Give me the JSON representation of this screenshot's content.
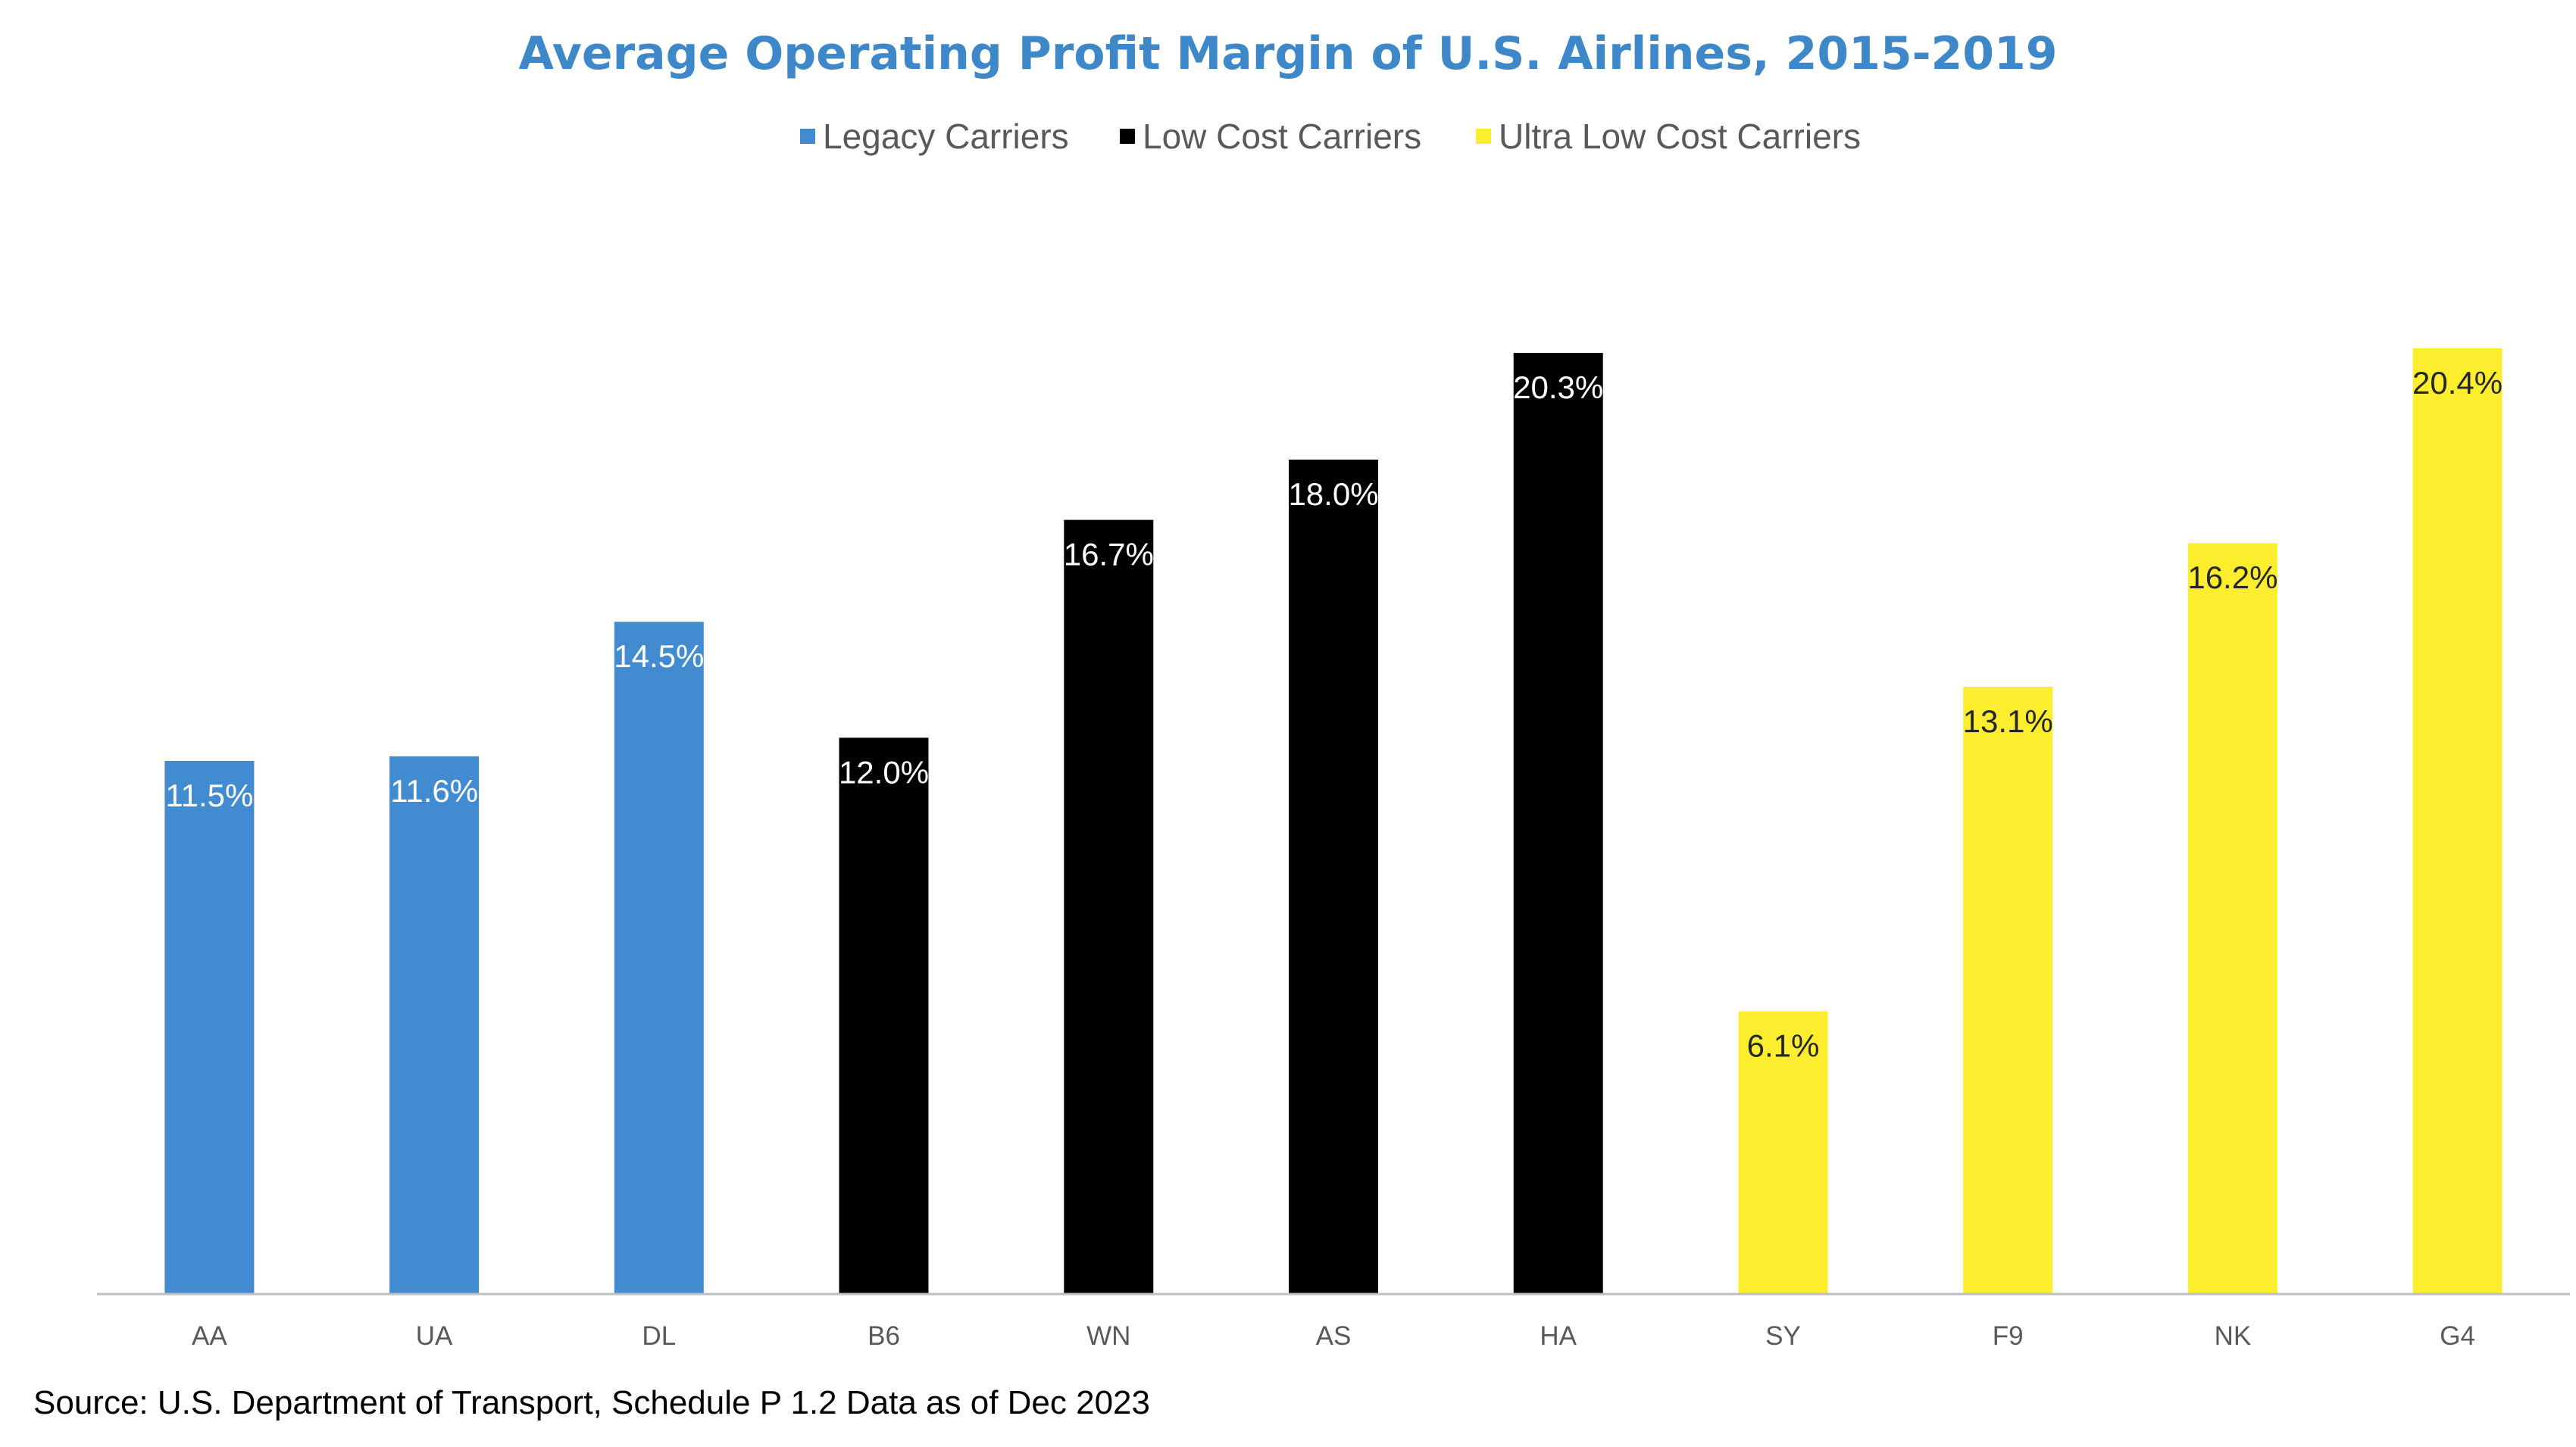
{
  "chart_data": {
    "type": "bar",
    "title": "Average Operating Profit Margin of U.S. Airlines, 2015-2019",
    "xlabel": "",
    "ylabel": "",
    "ylim": [
      0,
      24.5
    ],
    "grid": false,
    "legend_placement": "top-center",
    "categories": [
      "AA",
      "UA",
      "DL",
      "B6",
      "WN",
      "AS",
      "HA",
      "SY",
      "F9",
      "NK",
      "G4"
    ],
    "values": [
      11.5,
      11.6,
      14.5,
      12.0,
      16.7,
      18.0,
      20.3,
      6.1,
      13.1,
      16.2,
      20.4
    ],
    "data_labels": [
      "11.5%",
      "11.6%",
      "14.5%",
      "12.0%",
      "16.7%",
      "18.0%",
      "20.3%",
      "6.1%",
      "13.1%",
      "16.2%",
      "20.4%"
    ],
    "groups": [
      "Legacy Carriers",
      "Legacy Carriers",
      "Legacy Carriers",
      "Low Cost Carriers",
      "Low Cost Carriers",
      "Low Cost Carriers",
      "Low Cost Carriers",
      "Ultra Low Cost Carriers",
      "Ultra Low Cost Carriers",
      "Ultra Low Cost Carriers",
      "Ultra Low Cost Carriers"
    ],
    "legend": [
      {
        "name": "Legacy Carriers",
        "color": "#428bd1"
      },
      {
        "name": "Low Cost Carriers",
        "color": "#000000"
      },
      {
        "name": "Ultra Low Cost Carriers",
        "color": "#fcee2f"
      }
    ],
    "label_colors": {
      "Legacy Carriers": "#ffffff",
      "Low Cost Carriers": "#ffffff",
      "Ultra Low Cost Carriers": "#262626"
    }
  },
  "source_note": "Source: U.S. Department of Transport, Schedule P 1.2 Data as of Dec 2023"
}
